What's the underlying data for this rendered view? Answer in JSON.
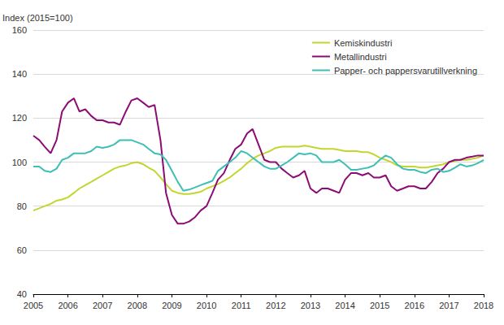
{
  "chart_data": {
    "type": "line",
    "y_label": "Index (2015=100)",
    "x": [
      2005,
      2005.17,
      2005.33,
      2005.5,
      2005.67,
      2005.83,
      2006,
      2006.17,
      2006.33,
      2006.5,
      2006.67,
      2006.83,
      2007,
      2007.17,
      2007.33,
      2007.5,
      2007.67,
      2007.83,
      2008,
      2008.17,
      2008.33,
      2008.5,
      2008.67,
      2008.83,
      2009,
      2009.17,
      2009.33,
      2009.5,
      2009.67,
      2009.83,
      2010,
      2010.17,
      2010.33,
      2010.5,
      2010.67,
      2010.83,
      2011,
      2011.17,
      2011.33,
      2011.5,
      2011.67,
      2011.83,
      2012,
      2012.17,
      2012.33,
      2012.5,
      2012.67,
      2012.83,
      2013,
      2013.17,
      2013.33,
      2013.5,
      2013.67,
      2013.83,
      2014,
      2014.17,
      2014.33,
      2014.5,
      2014.67,
      2014.83,
      2015,
      2015.17,
      2015.33,
      2015.5,
      2015.67,
      2015.83,
      2016,
      2016.17,
      2016.33,
      2016.5,
      2016.67,
      2016.83,
      2017,
      2017.17,
      2017.33,
      2017.5,
      2017.67,
      2017.83,
      2018
    ],
    "series": [
      {
        "name": "Kemiskindustri",
        "color": "#c3d62f",
        "values": [
          78,
          79,
          80,
          81,
          82.5,
          83,
          84,
          86,
          88,
          89.5,
          91,
          92.5,
          94,
          95.5,
          97,
          98,
          98.5,
          99.5,
          100,
          99,
          97.5,
          96,
          93,
          90,
          87,
          86,
          85.5,
          85.5,
          86,
          86.5,
          88,
          89,
          90,
          91.5,
          93,
          95,
          97,
          99.5,
          101.5,
          103,
          104,
          105,
          106.5,
          107,
          107,
          107,
          107,
          107.5,
          107,
          106.5,
          106,
          106,
          106,
          105.5,
          105,
          105,
          105,
          104.5,
          104.5,
          103.5,
          102,
          101,
          100,
          98.5,
          98,
          98,
          98,
          97.5,
          97.5,
          98,
          98.5,
          99,
          100,
          100.5,
          101,
          101,
          101.5,
          102,
          103
        ]
      },
      {
        "name": "Metallindustri",
        "color": "#8b0c74",
        "values": [
          112,
          110,
          107,
          104,
          110,
          123,
          127,
          129,
          123,
          124,
          121,
          119,
          119,
          118,
          118,
          117,
          123,
          128,
          129,
          127,
          125,
          126,
          110,
          86,
          76,
          72,
          72,
          73,
          75,
          78,
          80,
          86,
          92,
          95,
          101,
          106,
          108,
          113,
          115,
          108,
          101,
          100,
          100,
          97,
          95,
          93,
          94,
          96,
          88,
          86,
          88,
          88,
          87,
          86,
          92,
          95,
          95,
          94,
          95,
          93,
          93,
          94,
          89,
          87,
          88,
          89,
          89,
          88,
          88,
          91,
          95,
          97,
          100,
          101,
          101,
          102,
          102.5,
          103,
          103
        ]
      },
      {
        "name": "Papper- och pappersvarutillverkning",
        "color": "#3dbfb5",
        "values": [
          98,
          98,
          96,
          95.5,
          97,
          101,
          102,
          104,
          104,
          104,
          105,
          107,
          106.5,
          107,
          108,
          110,
          110,
          110,
          109,
          108,
          106,
          104,
          103.5,
          101,
          96,
          91,
          87,
          87.5,
          88.5,
          89.5,
          90.5,
          91.5,
          96,
          98,
          100,
          102,
          105,
          104,
          102,
          100,
          98,
          97,
          97,
          98.5,
          100,
          102,
          104,
          103.5,
          104,
          103,
          100,
          100,
          100,
          101,
          99,
          96.5,
          96.5,
          97,
          97.5,
          98.5,
          101,
          103,
          102,
          99,
          97,
          96.5,
          96.5,
          95.5,
          95,
          96.5,
          97,
          95.5,
          96,
          97.5,
          99,
          98,
          98.5,
          99.5,
          101
        ]
      }
    ],
    "xlim": [
      2005,
      2018
    ],
    "xticks": [
      2005,
      2006,
      2007,
      2008,
      2009,
      2010,
      2011,
      2012,
      2013,
      2014,
      2015,
      2016,
      2017,
      2018
    ],
    "ylim": [
      40,
      160
    ],
    "yticks": [
      40,
      60,
      80,
      100,
      120,
      140,
      160
    ],
    "grid": true,
    "legend": "upper right"
  }
}
